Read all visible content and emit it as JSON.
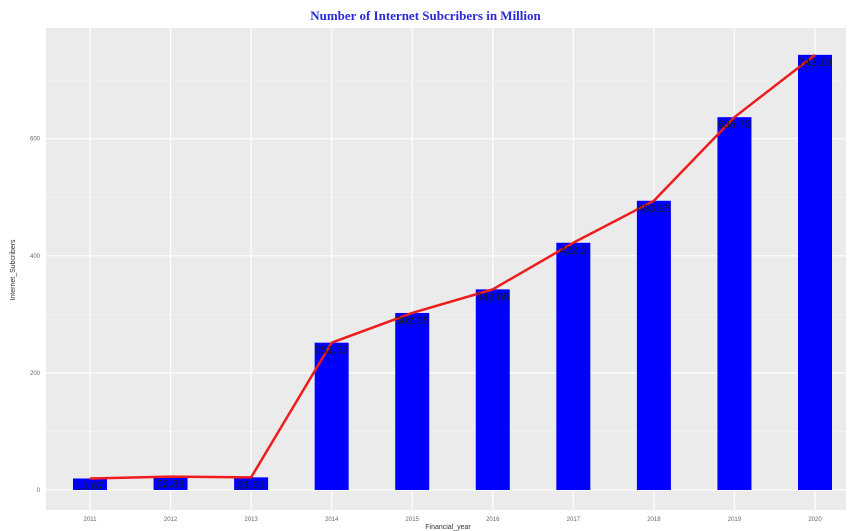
{
  "chart_data": {
    "type": "bar",
    "title": "Number of Internet Subcribers in Million",
    "xlabel": "Financial_year",
    "ylabel": "Internet_Subcribers",
    "categories": [
      "2011",
      "2012",
      "2013",
      "2014",
      "2015",
      "2016",
      "2017",
      "2018",
      "2019",
      "2020"
    ],
    "values": [
      19.67,
      22.86,
      21.61,
      251.59,
      302.35,
      342.65,
      422.2,
      493.95,
      636.73,
      743.19
    ],
    "data_labels": [
      "19.67",
      "22.86",
      "21.61",
      "251.59",
      "302.35",
      "342.65",
      "422.2",
      "493.95",
      "636.73",
      "743.19"
    ],
    "line_overlay": true,
    "yticks": [
      "0",
      "200",
      "400",
      "600"
    ],
    "ylim": [
      0,
      760
    ],
    "grid": true,
    "bar_color": "#0000ff",
    "line_color": "#ee1c1c",
    "panel_color": "#ebebeb",
    "title_color": "#2b2bd6"
  }
}
